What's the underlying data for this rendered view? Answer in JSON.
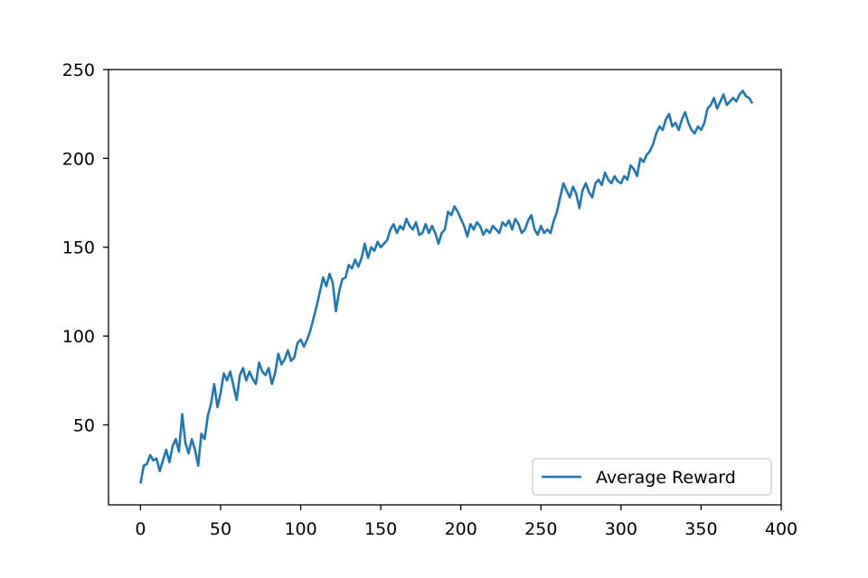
{
  "chart_data": {
    "type": "line",
    "title": "",
    "xlabel": "",
    "ylabel": "",
    "xlim": [
      -20,
      400
    ],
    "ylim": [
      5,
      250
    ],
    "x_ticks": [
      0,
      50,
      100,
      150,
      200,
      250,
      300,
      350,
      400
    ],
    "y_ticks": [
      50,
      100,
      150,
      200,
      250
    ],
    "grid": false,
    "legend_position": "lower-right",
    "series": [
      {
        "name": "Average Reward",
        "color": "#1f77b4",
        "points": [
          [
            0,
            17
          ],
          [
            2,
            27
          ],
          [
            4,
            28
          ],
          [
            6,
            33
          ],
          [
            8,
            30
          ],
          [
            10,
            31
          ],
          [
            12,
            24
          ],
          [
            14,
            30
          ],
          [
            16,
            36
          ],
          [
            18,
            29
          ],
          [
            20,
            38
          ],
          [
            22,
            42
          ],
          [
            24,
            35
          ],
          [
            26,
            56
          ],
          [
            28,
            40
          ],
          [
            30,
            34
          ],
          [
            32,
            42
          ],
          [
            34,
            36
          ],
          [
            36,
            27
          ],
          [
            38,
            45
          ],
          [
            40,
            42
          ],
          [
            42,
            55
          ],
          [
            44,
            62
          ],
          [
            46,
            73
          ],
          [
            48,
            60
          ],
          [
            50,
            68
          ],
          [
            52,
            79
          ],
          [
            54,
            75
          ],
          [
            56,
            80
          ],
          [
            58,
            72
          ],
          [
            60,
            64
          ],
          [
            62,
            78
          ],
          [
            64,
            82
          ],
          [
            66,
            75
          ],
          [
            68,
            80
          ],
          [
            70,
            76
          ],
          [
            72,
            73
          ],
          [
            74,
            85
          ],
          [
            76,
            80
          ],
          [
            78,
            78
          ],
          [
            80,
            82
          ],
          [
            82,
            73
          ],
          [
            84,
            79
          ],
          [
            86,
            90
          ],
          [
            88,
            84
          ],
          [
            90,
            87
          ],
          [
            92,
            92
          ],
          [
            94,
            86
          ],
          [
            96,
            88
          ],
          [
            98,
            96
          ],
          [
            100,
            98
          ],
          [
            102,
            94
          ],
          [
            104,
            98
          ],
          [
            106,
            103
          ],
          [
            108,
            110
          ],
          [
            110,
            117
          ],
          [
            112,
            125
          ],
          [
            114,
            133
          ],
          [
            116,
            128
          ],
          [
            118,
            135
          ],
          [
            120,
            130
          ],
          [
            122,
            114
          ],
          [
            124,
            125
          ],
          [
            126,
            132
          ],
          [
            128,
            133
          ],
          [
            130,
            140
          ],
          [
            132,
            138
          ],
          [
            134,
            143
          ],
          [
            136,
            139
          ],
          [
            138,
            144
          ],
          [
            140,
            152
          ],
          [
            142,
            144
          ],
          [
            144,
            150
          ],
          [
            146,
            148
          ],
          [
            148,
            153
          ],
          [
            150,
            150
          ],
          [
            152,
            152
          ],
          [
            154,
            154
          ],
          [
            156,
            160
          ],
          [
            158,
            163
          ],
          [
            160,
            158
          ],
          [
            162,
            162
          ],
          [
            164,
            160
          ],
          [
            166,
            166
          ],
          [
            168,
            162
          ],
          [
            170,
            160
          ],
          [
            172,
            164
          ],
          [
            174,
            157
          ],
          [
            176,
            158
          ],
          [
            178,
            163
          ],
          [
            180,
            158
          ],
          [
            182,
            162
          ],
          [
            184,
            158
          ],
          [
            186,
            152
          ],
          [
            188,
            158
          ],
          [
            190,
            160
          ],
          [
            192,
            170
          ],
          [
            194,
            168
          ],
          [
            196,
            173
          ],
          [
            198,
            170
          ],
          [
            200,
            166
          ],
          [
            202,
            162
          ],
          [
            204,
            156
          ],
          [
            206,
            163
          ],
          [
            208,
            160
          ],
          [
            210,
            164
          ],
          [
            212,
            162
          ],
          [
            214,
            157
          ],
          [
            216,
            160
          ],
          [
            218,
            158
          ],
          [
            220,
            162
          ],
          [
            222,
            160
          ],
          [
            224,
            158
          ],
          [
            226,
            164
          ],
          [
            228,
            162
          ],
          [
            230,
            165
          ],
          [
            232,
            160
          ],
          [
            234,
            166
          ],
          [
            236,
            163
          ],
          [
            238,
            158
          ],
          [
            240,
            160
          ],
          [
            242,
            165
          ],
          [
            244,
            168
          ],
          [
            246,
            160
          ],
          [
            248,
            157
          ],
          [
            250,
            162
          ],
          [
            252,
            158
          ],
          [
            254,
            160
          ],
          [
            256,
            158
          ],
          [
            258,
            165
          ],
          [
            260,
            170
          ],
          [
            262,
            178
          ],
          [
            264,
            186
          ],
          [
            266,
            182
          ],
          [
            268,
            178
          ],
          [
            270,
            184
          ],
          [
            272,
            180
          ],
          [
            274,
            172
          ],
          [
            276,
            182
          ],
          [
            278,
            186
          ],
          [
            280,
            181
          ],
          [
            282,
            178
          ],
          [
            284,
            186
          ],
          [
            286,
            188
          ],
          [
            288,
            185
          ],
          [
            290,
            192
          ],
          [
            292,
            188
          ],
          [
            294,
            186
          ],
          [
            296,
            190
          ],
          [
            298,
            187
          ],
          [
            300,
            186
          ],
          [
            302,
            190
          ],
          [
            304,
            188
          ],
          [
            306,
            196
          ],
          [
            308,
            194
          ],
          [
            310,
            190
          ],
          [
            312,
            200
          ],
          [
            314,
            198
          ],
          [
            316,
            202
          ],
          [
            318,
            204
          ],
          [
            320,
            208
          ],
          [
            322,
            214
          ],
          [
            324,
            218
          ],
          [
            326,
            216
          ],
          [
            328,
            222
          ],
          [
            330,
            225
          ],
          [
            332,
            218
          ],
          [
            334,
            220
          ],
          [
            336,
            216
          ],
          [
            338,
            222
          ],
          [
            340,
            226
          ],
          [
            342,
            220
          ],
          [
            344,
            216
          ],
          [
            346,
            214
          ],
          [
            348,
            218
          ],
          [
            350,
            216
          ],
          [
            352,
            220
          ],
          [
            354,
            228
          ],
          [
            356,
            230
          ],
          [
            358,
            234
          ],
          [
            360,
            228
          ],
          [
            362,
            232
          ],
          [
            364,
            236
          ],
          [
            366,
            230
          ],
          [
            368,
            232
          ],
          [
            370,
            234
          ],
          [
            372,
            232
          ],
          [
            374,
            236
          ],
          [
            376,
            238
          ],
          [
            378,
            235
          ],
          [
            380,
            234
          ],
          [
            382,
            231
          ]
        ]
      }
    ]
  }
}
